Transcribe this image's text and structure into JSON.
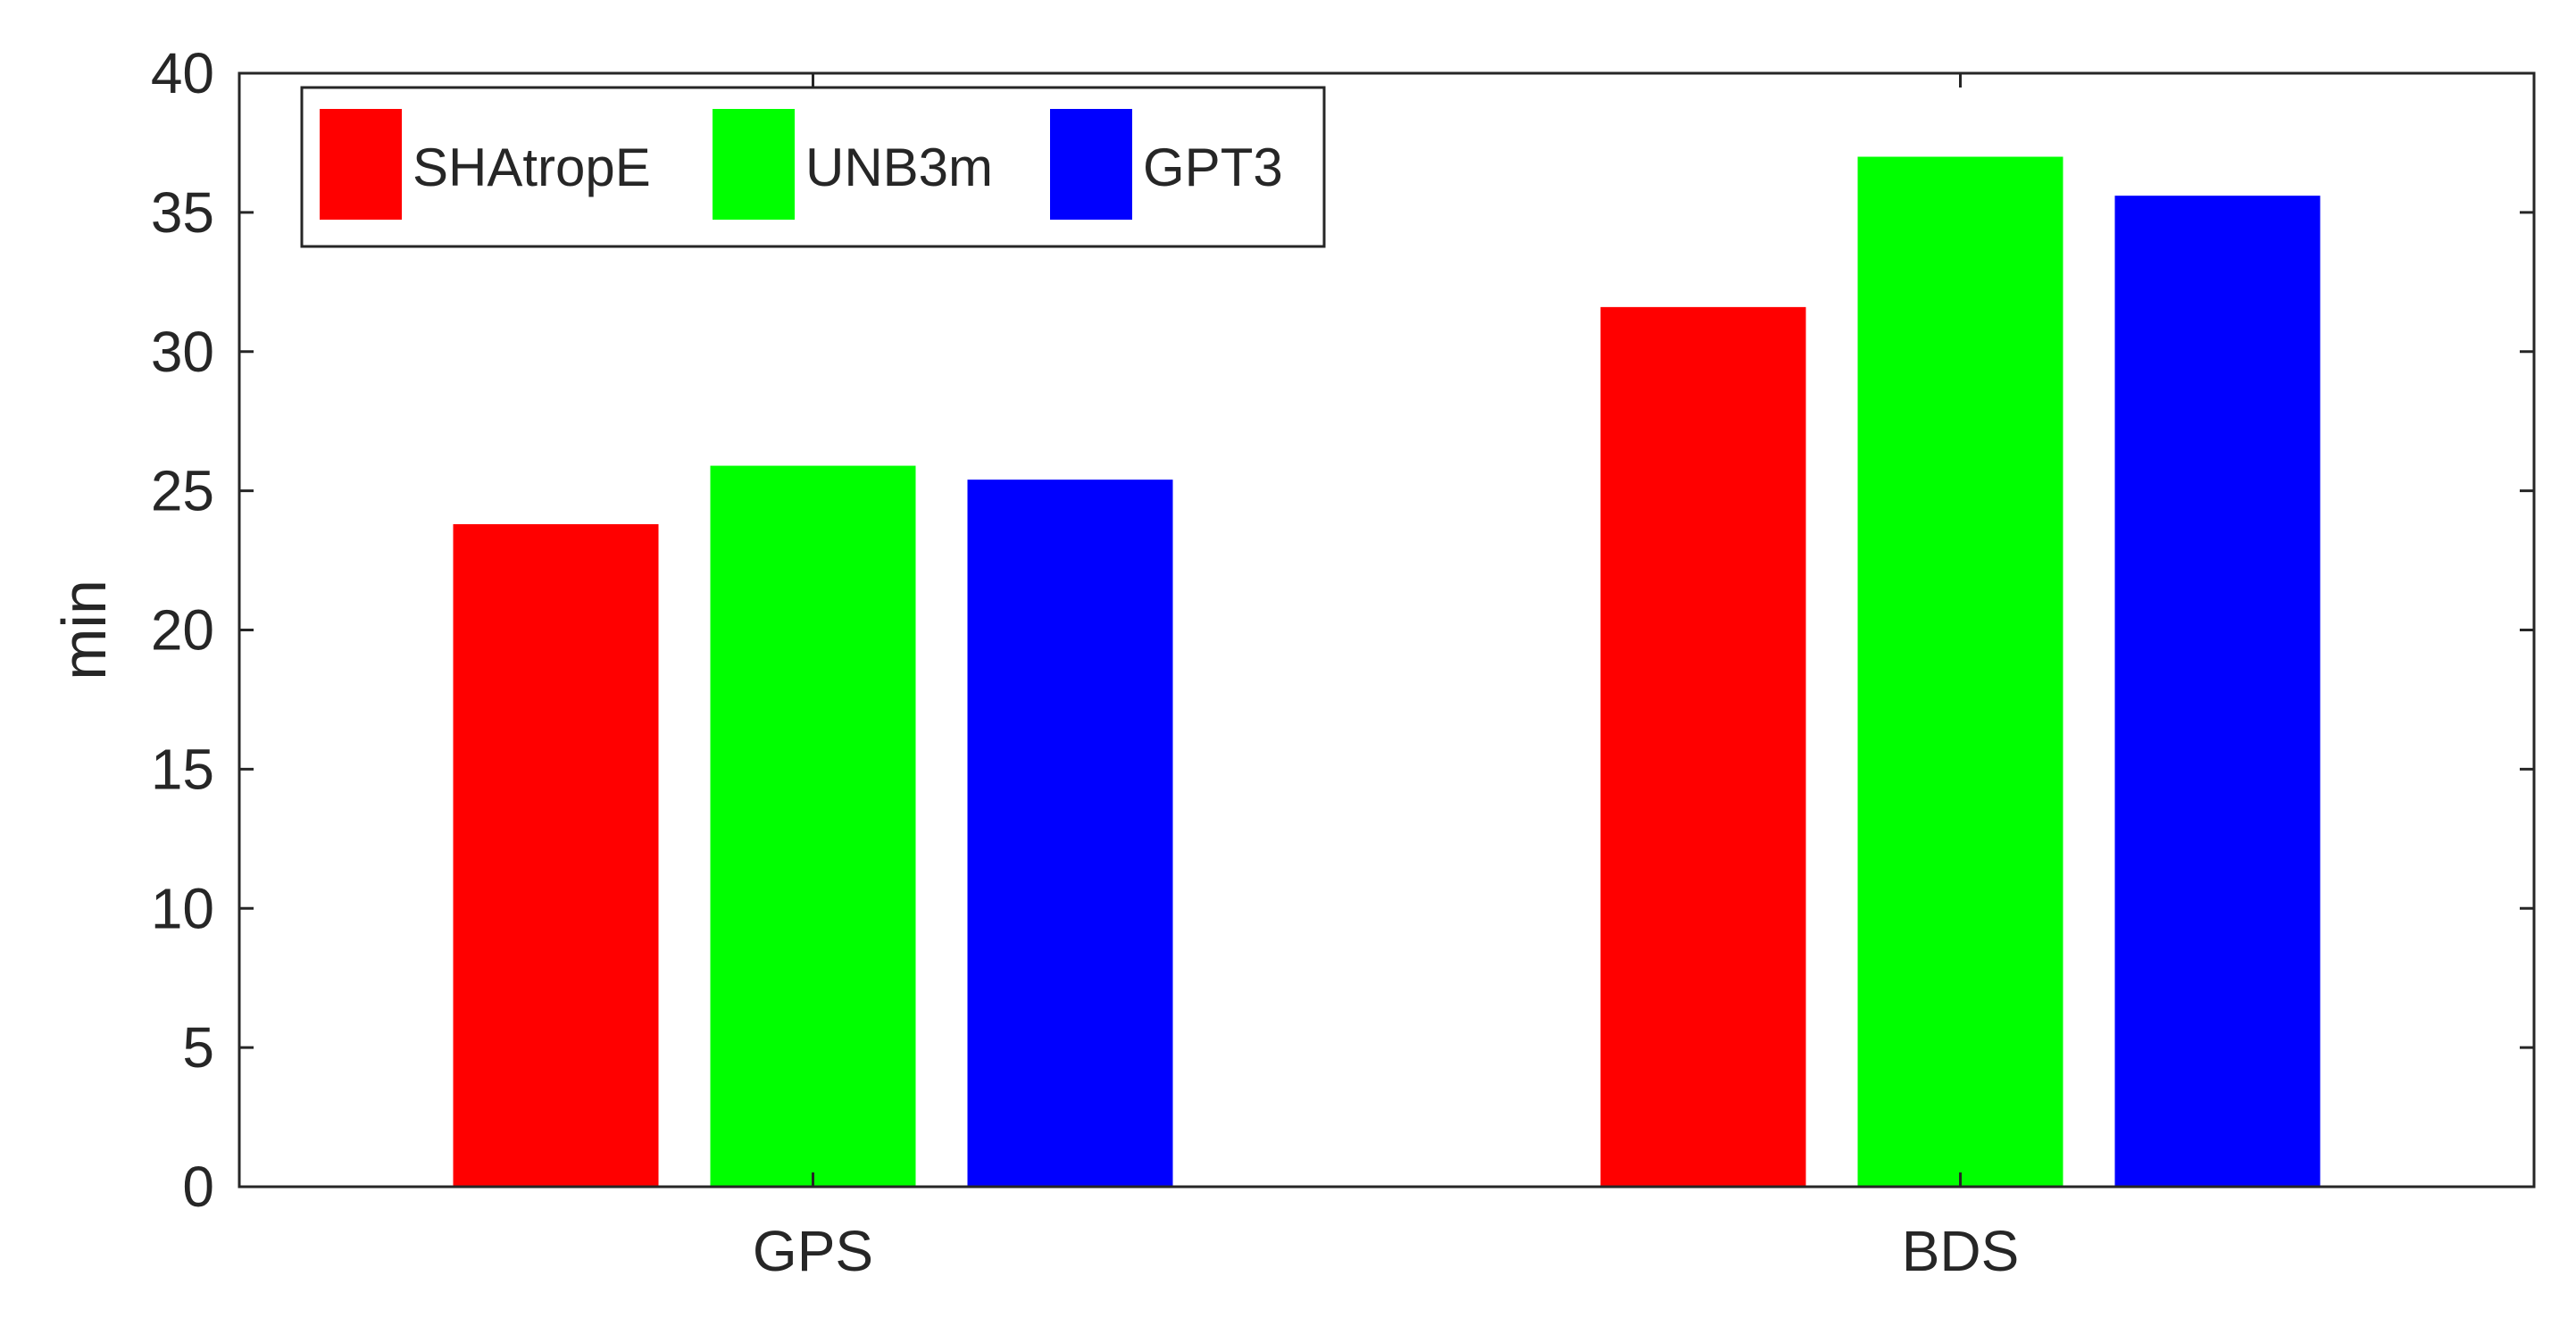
{
  "chart_data": {
    "type": "bar",
    "categories": [
      "GPS",
      "BDS"
    ],
    "series": [
      {
        "name": "SHAtropE",
        "color": "#ff0000",
        "values": [
          23.8,
          31.6
        ]
      },
      {
        "name": "UNB3m",
        "color": "#00ff00",
        "values": [
          25.9,
          37.0
        ]
      },
      {
        "name": "GPT3",
        "color": "#0000ff",
        "values": [
          25.4,
          35.6
        ]
      }
    ],
    "title": "",
    "xlabel": "",
    "ylabel": "min",
    "ylim": [
      0,
      40
    ],
    "yticks": [
      "0",
      "5",
      "10",
      "15",
      "20",
      "25",
      "30",
      "35",
      "40"
    ],
    "grid": false,
    "legend_position": "top-left"
  }
}
